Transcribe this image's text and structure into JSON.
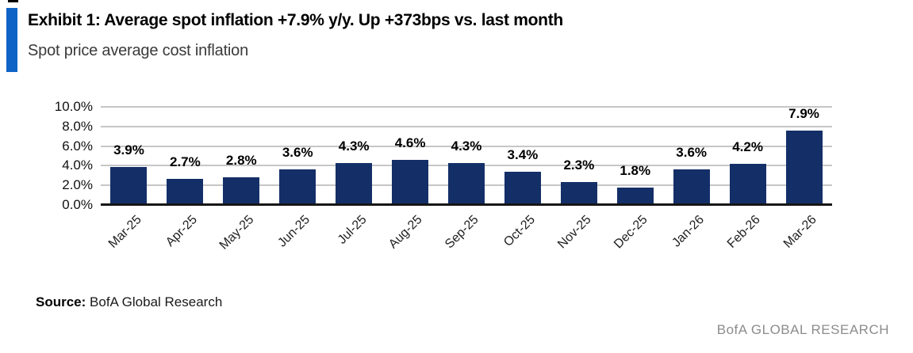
{
  "header": {
    "title": "Exhibit 1: Average spot inflation +7.9% y/y. Up +373bps vs. last month",
    "subtitle": "Spot price average cost inflation"
  },
  "chart_data": {
    "type": "bar",
    "title": "Spot price average cost inflation",
    "categories": [
      "Mar-25",
      "Apr-25",
      "May-25",
      "Jun-25",
      "Jul-25",
      "Aug-25",
      "Sep-25",
      "Oct-25",
      "Nov-25",
      "Dec-25",
      "Jan-26",
      "Feb-26",
      "Mar-26"
    ],
    "values": [
      3.9,
      2.7,
      2.8,
      3.6,
      4.3,
      4.6,
      4.3,
      3.4,
      2.3,
      1.8,
      3.6,
      4.2,
      7.9
    ],
    "value_labels": [
      "3.9%",
      "2.7%",
      "2.8%",
      "3.6%",
      "4.3%",
      "4.6%",
      "4.3%",
      "3.4%",
      "2.3%",
      "1.8%",
      "3.6%",
      "4.2%",
      "7.9%"
    ],
    "xlabel": "",
    "ylabel": "",
    "ylim": [
      0,
      10
    ],
    "ytick_step": 2,
    "yticks": [
      "10.0%",
      "8.0%",
      "6.0%",
      "4.0%",
      "2.0%",
      "0.0%"
    ],
    "grid": true,
    "legend": "none",
    "bar_color": "#142f68"
  },
  "footer": {
    "source_label": "Source:",
    "source_text": " BofA Global Research",
    "brand": "BofA GLOBAL RESEARCH"
  },
  "colors": {
    "accent_blue": "#1063c6",
    "bar_navy": "#142f68",
    "gridline_gray": "#c6c6c6",
    "axis_black": "#161616",
    "brand_gray": "#8c8c8c"
  }
}
